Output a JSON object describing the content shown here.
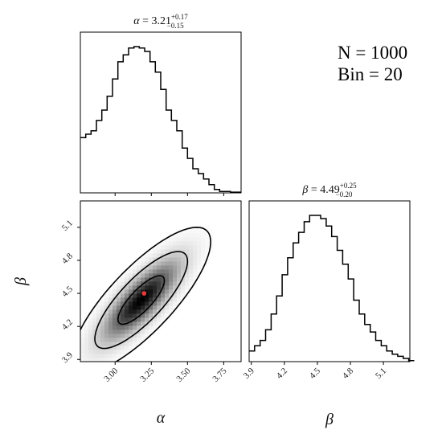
{
  "chart_data": {
    "type": "corner",
    "annotation": {
      "line1": "N = 1000",
      "line2": "Bin = 20"
    },
    "alpha": {
      "label": "α",
      "title": {
        "symbol": "α",
        "median": "3.21",
        "plus": "+0.17",
        "minus": "−0.15"
      },
      "range": [
        2.76,
        3.87
      ],
      "ticks": [
        3.0,
        3.25,
        3.5,
        3.75
      ],
      "tick_labels": [
        "3.00",
        "3.25",
        "3.50",
        "3.75"
      ],
      "hist_bin_width": 0.037,
      "hist_counts": [
        0.8,
        0.85,
        0.9,
        1.05,
        1.2,
        1.4,
        1.65,
        1.9,
        2.0,
        2.1,
        2.12,
        2.1,
        2.05,
        1.9,
        1.75,
        1.5,
        1.2,
        1.05,
        0.9,
        0.65,
        0.5,
        0.35,
        0.28,
        0.2,
        0.12,
        0.05,
        0.02,
        0.02,
        0.01,
        0.01
      ]
    },
    "beta": {
      "label": "β",
      "title": {
        "symbol": "β",
        "median": "4.49",
        "plus": "+0.25",
        "minus": "−0.20"
      },
      "range": [
        3.88,
        5.34
      ],
      "ticks": [
        3.9,
        4.2,
        4.5,
        4.8,
        5.1
      ],
      "tick_labels": [
        "3.9",
        "4.2",
        "4.5",
        "4.8",
        "5.1"
      ],
      "hist_bin_width": 0.05,
      "hist_counts": [
        0.1,
        0.15,
        0.2,
        0.3,
        0.45,
        0.62,
        0.82,
        0.98,
        1.12,
        1.22,
        1.32,
        1.38,
        1.38,
        1.35,
        1.28,
        1.18,
        1.05,
        0.92,
        0.78,
        0.58,
        0.45,
        0.35,
        0.28,
        0.2,
        0.15,
        0.1,
        0.07,
        0.05,
        0.03,
        0.01
      ]
    },
    "joint": {
      "truth_point": {
        "alpha": 3.2,
        "beta": 4.5,
        "color": "#e83a3a"
      },
      "peak": {
        "alpha": 3.18,
        "beta": 4.44
      },
      "sigma_alpha": 0.16,
      "sigma_beta": 0.22,
      "correlation": 0.8,
      "contour_sigmas": [
        1,
        2,
        3
      ]
    }
  }
}
